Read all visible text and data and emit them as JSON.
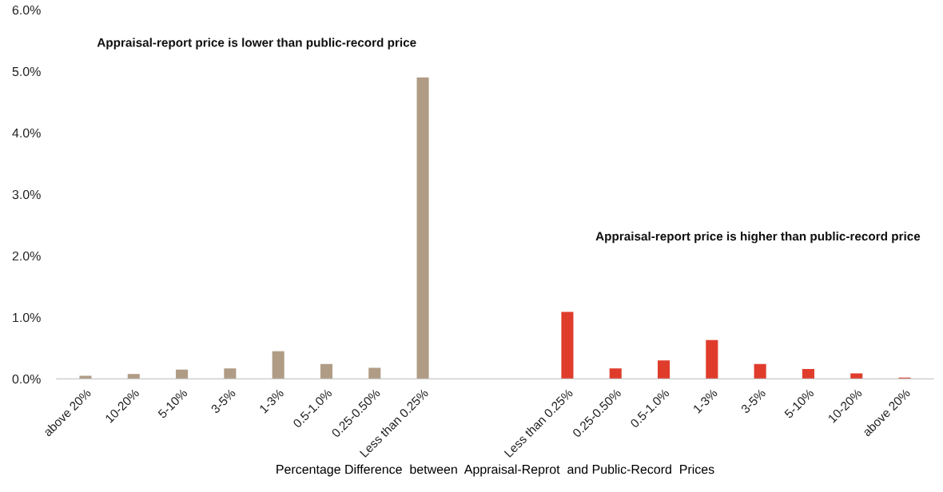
{
  "chart_data": {
    "type": "bar",
    "xlabel": "Percentage Difference  between  Appraisal-Reprot  and Public-Record  Prices",
    "categories": [
      "above 20%",
      "10-20%",
      "5-10%",
      "3-5%",
      "1-3%",
      "0.5-1.0%",
      "0.25-0.50%",
      "Less than 0.25%",
      null,
      null,
      "Less than 0.25%",
      "0.25-0.50%",
      "0.5-1.0%",
      "1-3%",
      "3-5%",
      "5-10%",
      "10-20%",
      "above 20%"
    ],
    "values": [
      0.05,
      0.08,
      0.15,
      0.17,
      0.45,
      0.24,
      0.18,
      4.9,
      null,
      null,
      1.09,
      0.17,
      0.3,
      0.63,
      0.24,
      0.16,
      0.09,
      0.02
    ],
    "colors": [
      "#b09c85",
      "#b09c85",
      "#b09c85",
      "#b09c85",
      "#b09c85",
      "#b09c85",
      "#b09c85",
      "#b09c85",
      "#b09c85",
      "#e03c2c",
      "#e03c2c",
      "#e03c2c",
      "#e03c2c",
      "#e03c2c",
      "#e03c2c",
      "#e03c2c",
      "#e03c2c",
      "#e03c2c"
    ],
    "ylim": [
      0,
      6
    ],
    "yticks": [
      {
        "value": 0,
        "label": "0.0%"
      },
      {
        "value": 1,
        "label": "1.0%"
      },
      {
        "value": 2,
        "label": "2.0%"
      },
      {
        "value": 3,
        "label": "3.0%"
      },
      {
        "value": 4,
        "label": "4.0%"
      },
      {
        "value": 5,
        "label": "5.0%"
      },
      {
        "value": 6,
        "label": "6.0%"
      }
    ],
    "annotations": [
      "Appraisal-report price is lower than public-record price",
      "Appraisal-report price is higher than public-record price"
    ],
    "grid": false,
    "legend": false
  }
}
